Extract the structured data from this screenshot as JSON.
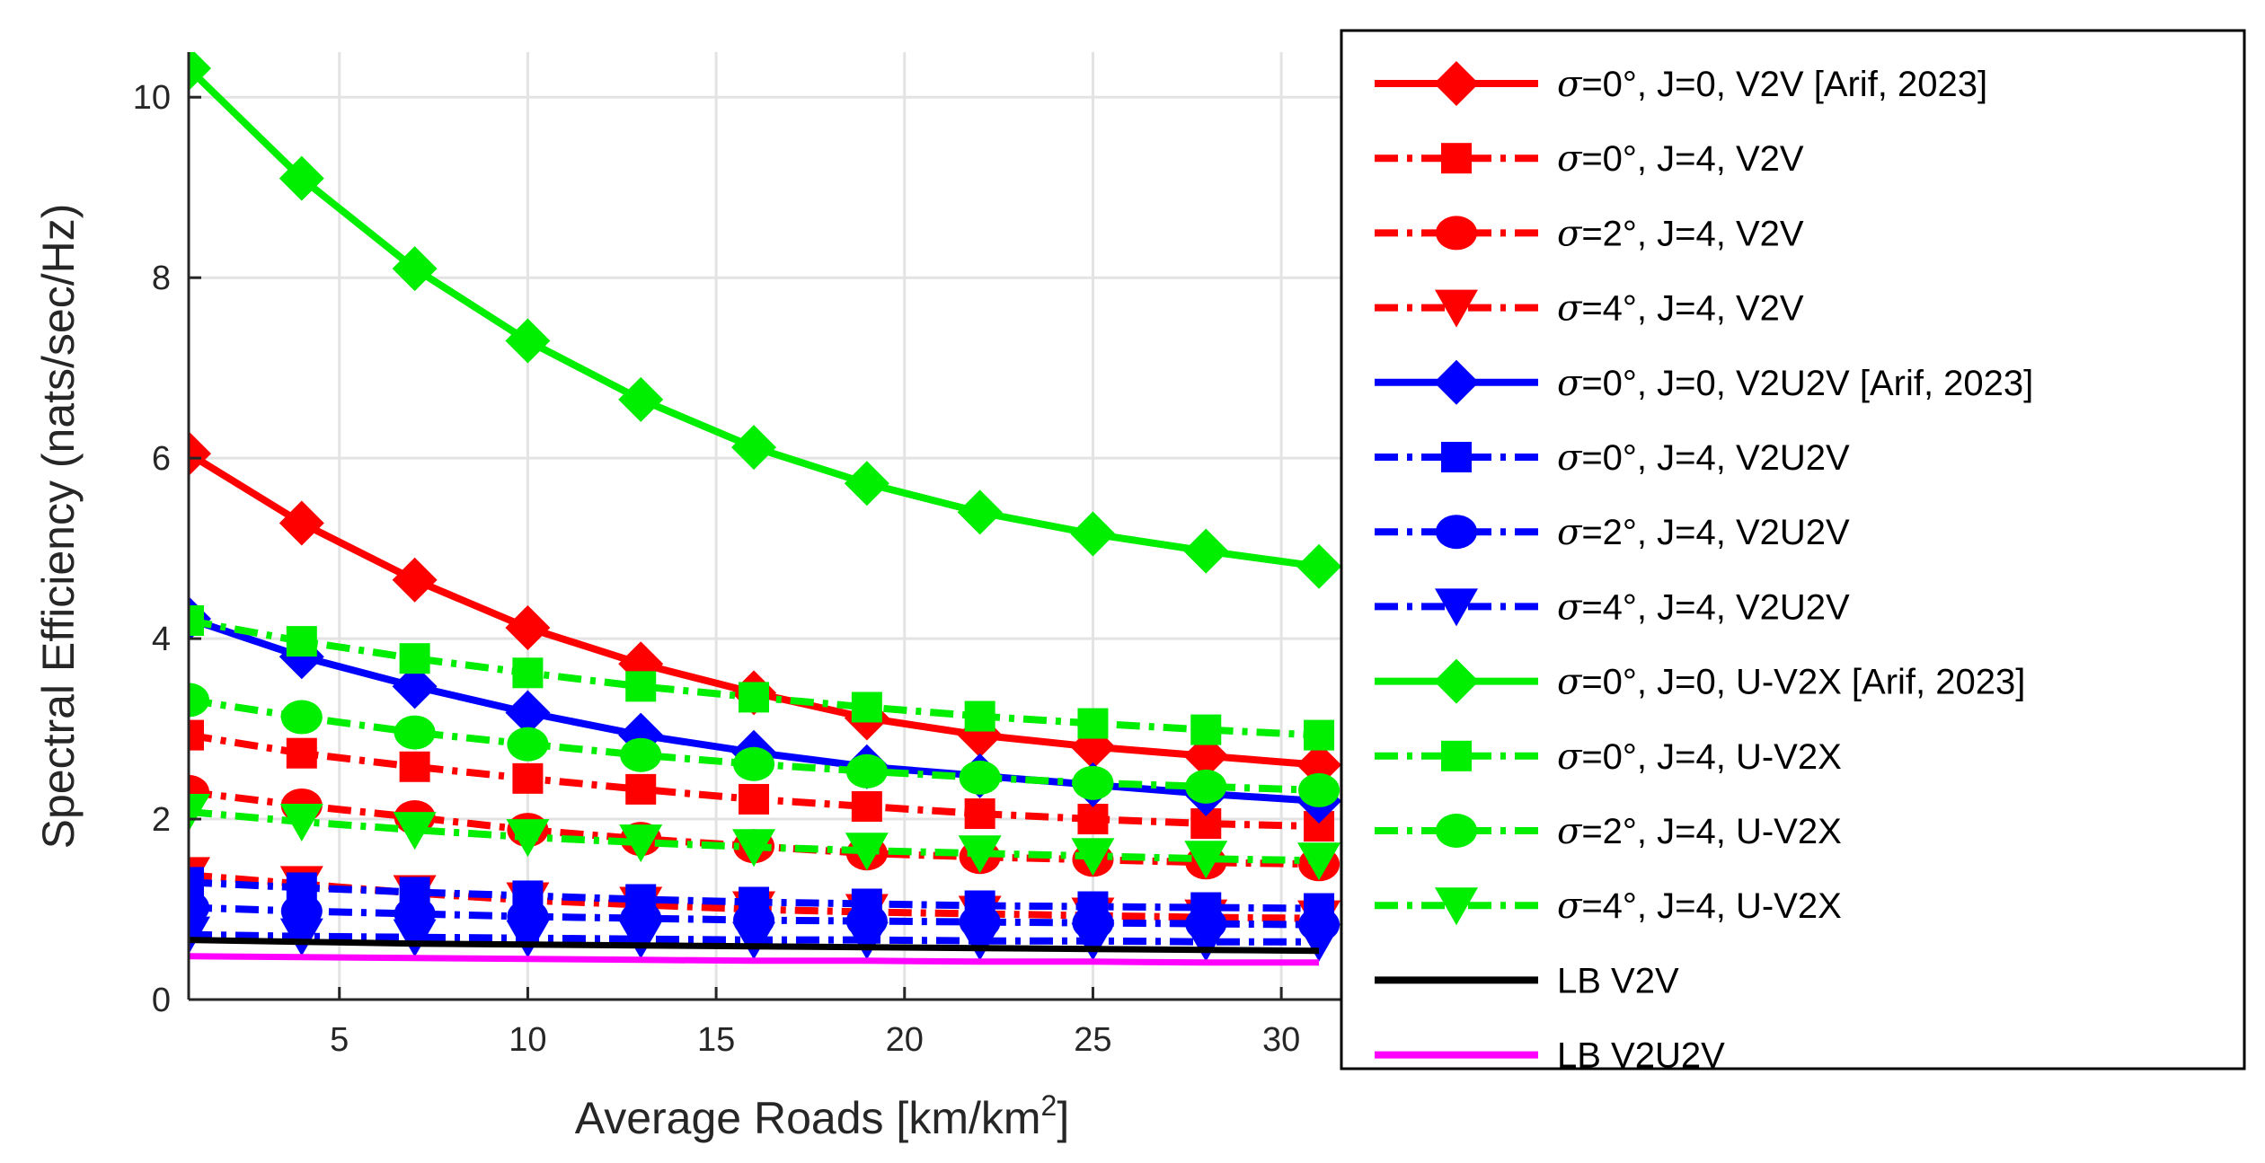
{
  "chart_data": {
    "type": "line",
    "title": "",
    "xlabel": "Average Roads [km/km",
    "xlabel_sup": "2",
    "xlabel_end": "]",
    "ylabel": "Spectral Efficiency (nats/sec/Hz)",
    "xlim": [
      1,
      32
    ],
    "ylim": [
      0,
      10.5
    ],
    "xticks": [
      5,
      10,
      15,
      20,
      25,
      30
    ],
    "yticks": [
      0,
      2,
      4,
      6,
      8,
      10
    ],
    "x": [
      1,
      4,
      7,
      10,
      13,
      16,
      19,
      22,
      25,
      28,
      31
    ],
    "grid": true,
    "legend_position": "top-right",
    "series": [
      {
        "name": "σ=0°, J=0, V2V [Arif, 2023]",
        "legend": {
          "sym": "σ",
          "rest": "=0°, J=0, V2V [Arif, 2023]"
        },
        "color": "#ff0000",
        "dash": "solid",
        "marker": "diamond",
        "values": [
          6.05,
          5.28,
          4.65,
          4.12,
          3.72,
          3.4,
          3.12,
          2.93,
          2.8,
          2.7,
          2.6
        ]
      },
      {
        "name": "σ=0°, J=4, V2V",
        "legend": {
          "sym": "σ",
          "rest": "=0°, J=4, V2V"
        },
        "color": "#ff0000",
        "dash": "dashdot",
        "marker": "square",
        "values": [
          2.93,
          2.73,
          2.58,
          2.45,
          2.33,
          2.22,
          2.14,
          2.06,
          2.0,
          1.95,
          1.92
        ]
      },
      {
        "name": "σ=2°, J=4, V2V",
        "legend": {
          "sym": "σ",
          "rest": "=2°, J=4, V2V"
        },
        "color": "#ff0000",
        "dash": "dashdot",
        "marker": "circle",
        "values": [
          2.3,
          2.15,
          2.02,
          1.88,
          1.78,
          1.7,
          1.62,
          1.58,
          1.55,
          1.52,
          1.5
        ]
      },
      {
        "name": "σ=4°, J=4, V2V",
        "legend": {
          "sym": "σ",
          "rest": "=4°, J=4, V2V"
        },
        "color": "#ff0000",
        "dash": "dashdot",
        "marker": "triangle-down",
        "values": [
          1.38,
          1.28,
          1.18,
          1.1,
          1.05,
          1.0,
          0.97,
          0.95,
          0.93,
          0.91,
          0.9
        ]
      },
      {
        "name": "σ=0°, J=0, V2U2V [Arif, 2023]",
        "legend": {
          "sym": "σ",
          "rest": "=0°, J=0, V2U2V [Arif, 2023]"
        },
        "color": "#0000ff",
        "dash": "solid",
        "marker": "diamond",
        "values": [
          4.22,
          3.8,
          3.47,
          3.18,
          2.93,
          2.74,
          2.58,
          2.48,
          2.38,
          2.28,
          2.2
        ]
      },
      {
        "name": "σ=0°, J=4, V2U2V",
        "legend": {
          "sym": "σ",
          "rest": "=0°, J=4, V2U2V"
        },
        "color": "#0000ff",
        "dash": "dashdot",
        "marker": "square",
        "values": [
          1.3,
          1.24,
          1.19,
          1.15,
          1.11,
          1.08,
          1.06,
          1.04,
          1.03,
          1.02,
          1.01
        ]
      },
      {
        "name": "σ=2°, J=4, V2U2V",
        "legend": {
          "sym": "σ",
          "rest": "=2°, J=4, V2U2V"
        },
        "color": "#0000ff",
        "dash": "dashdot",
        "marker": "circle",
        "values": [
          1.02,
          0.98,
          0.95,
          0.92,
          0.9,
          0.88,
          0.87,
          0.86,
          0.85,
          0.84,
          0.83
        ]
      },
      {
        "name": "σ=4°, J=4, V2U2V",
        "legend": {
          "sym": "σ",
          "rest": "=4°, J=4, V2U2V"
        },
        "color": "#0000ff",
        "dash": "dashdot",
        "marker": "triangle-down",
        "values": [
          0.72,
          0.7,
          0.69,
          0.68,
          0.67,
          0.66,
          0.66,
          0.65,
          0.65,
          0.64,
          0.64
        ]
      },
      {
        "name": "σ=0°, J=0, U-V2X [Arif, 2023]",
        "legend": {
          "sym": "σ",
          "rest": "=0°, J=0, U-V2X [Arif, 2023]"
        },
        "color": "#00ee00",
        "dash": "solid",
        "marker": "diamond",
        "values": [
          10.32,
          9.1,
          8.1,
          7.3,
          6.65,
          6.12,
          5.72,
          5.4,
          5.16,
          4.97,
          4.8
        ]
      },
      {
        "name": "σ=0°, J=4, U-V2X",
        "legend": {
          "sym": "σ",
          "rest": "=0°, J=4, U-V2X"
        },
        "color": "#00ee00",
        "dash": "dashdot",
        "marker": "square",
        "values": [
          4.2,
          3.97,
          3.78,
          3.62,
          3.47,
          3.35,
          3.24,
          3.14,
          3.06,
          2.99,
          2.93
        ]
      },
      {
        "name": "σ=2°, J=4, U-V2X",
        "legend": {
          "sym": "σ",
          "rest": "=2°, J=4, U-V2X"
        },
        "color": "#00ee00",
        "dash": "dashdot",
        "marker": "circle",
        "values": [
          3.32,
          3.13,
          2.96,
          2.83,
          2.71,
          2.61,
          2.53,
          2.46,
          2.4,
          2.36,
          2.32
        ]
      },
      {
        "name": "σ=4°, J=4, U-V2X",
        "legend": {
          "sym": "σ",
          "rest": "=4°, J=4, U-V2X"
        },
        "color": "#00ee00",
        "dash": "dashdot",
        "marker": "triangle-down",
        "values": [
          2.08,
          1.97,
          1.88,
          1.8,
          1.74,
          1.69,
          1.65,
          1.62,
          1.59,
          1.56,
          1.54
        ]
      },
      {
        "name": "LB V2V",
        "legend": {
          "sym": "",
          "rest": "LB V2V"
        },
        "color": "#000000",
        "dash": "solid",
        "marker": "none",
        "values": [
          0.66,
          0.64,
          0.62,
          0.61,
          0.6,
          0.59,
          0.58,
          0.57,
          0.56,
          0.55,
          0.54
        ]
      },
      {
        "name": "LB V2U2V",
        "legend": {
          "sym": "",
          "rest": "LB V2U2V"
        },
        "color": "#ff00ff",
        "dash": "solid",
        "marker": "none",
        "values": [
          0.48,
          0.47,
          0.46,
          0.45,
          0.44,
          0.43,
          0.43,
          0.42,
          0.42,
          0.41,
          0.41
        ]
      }
    ]
  }
}
